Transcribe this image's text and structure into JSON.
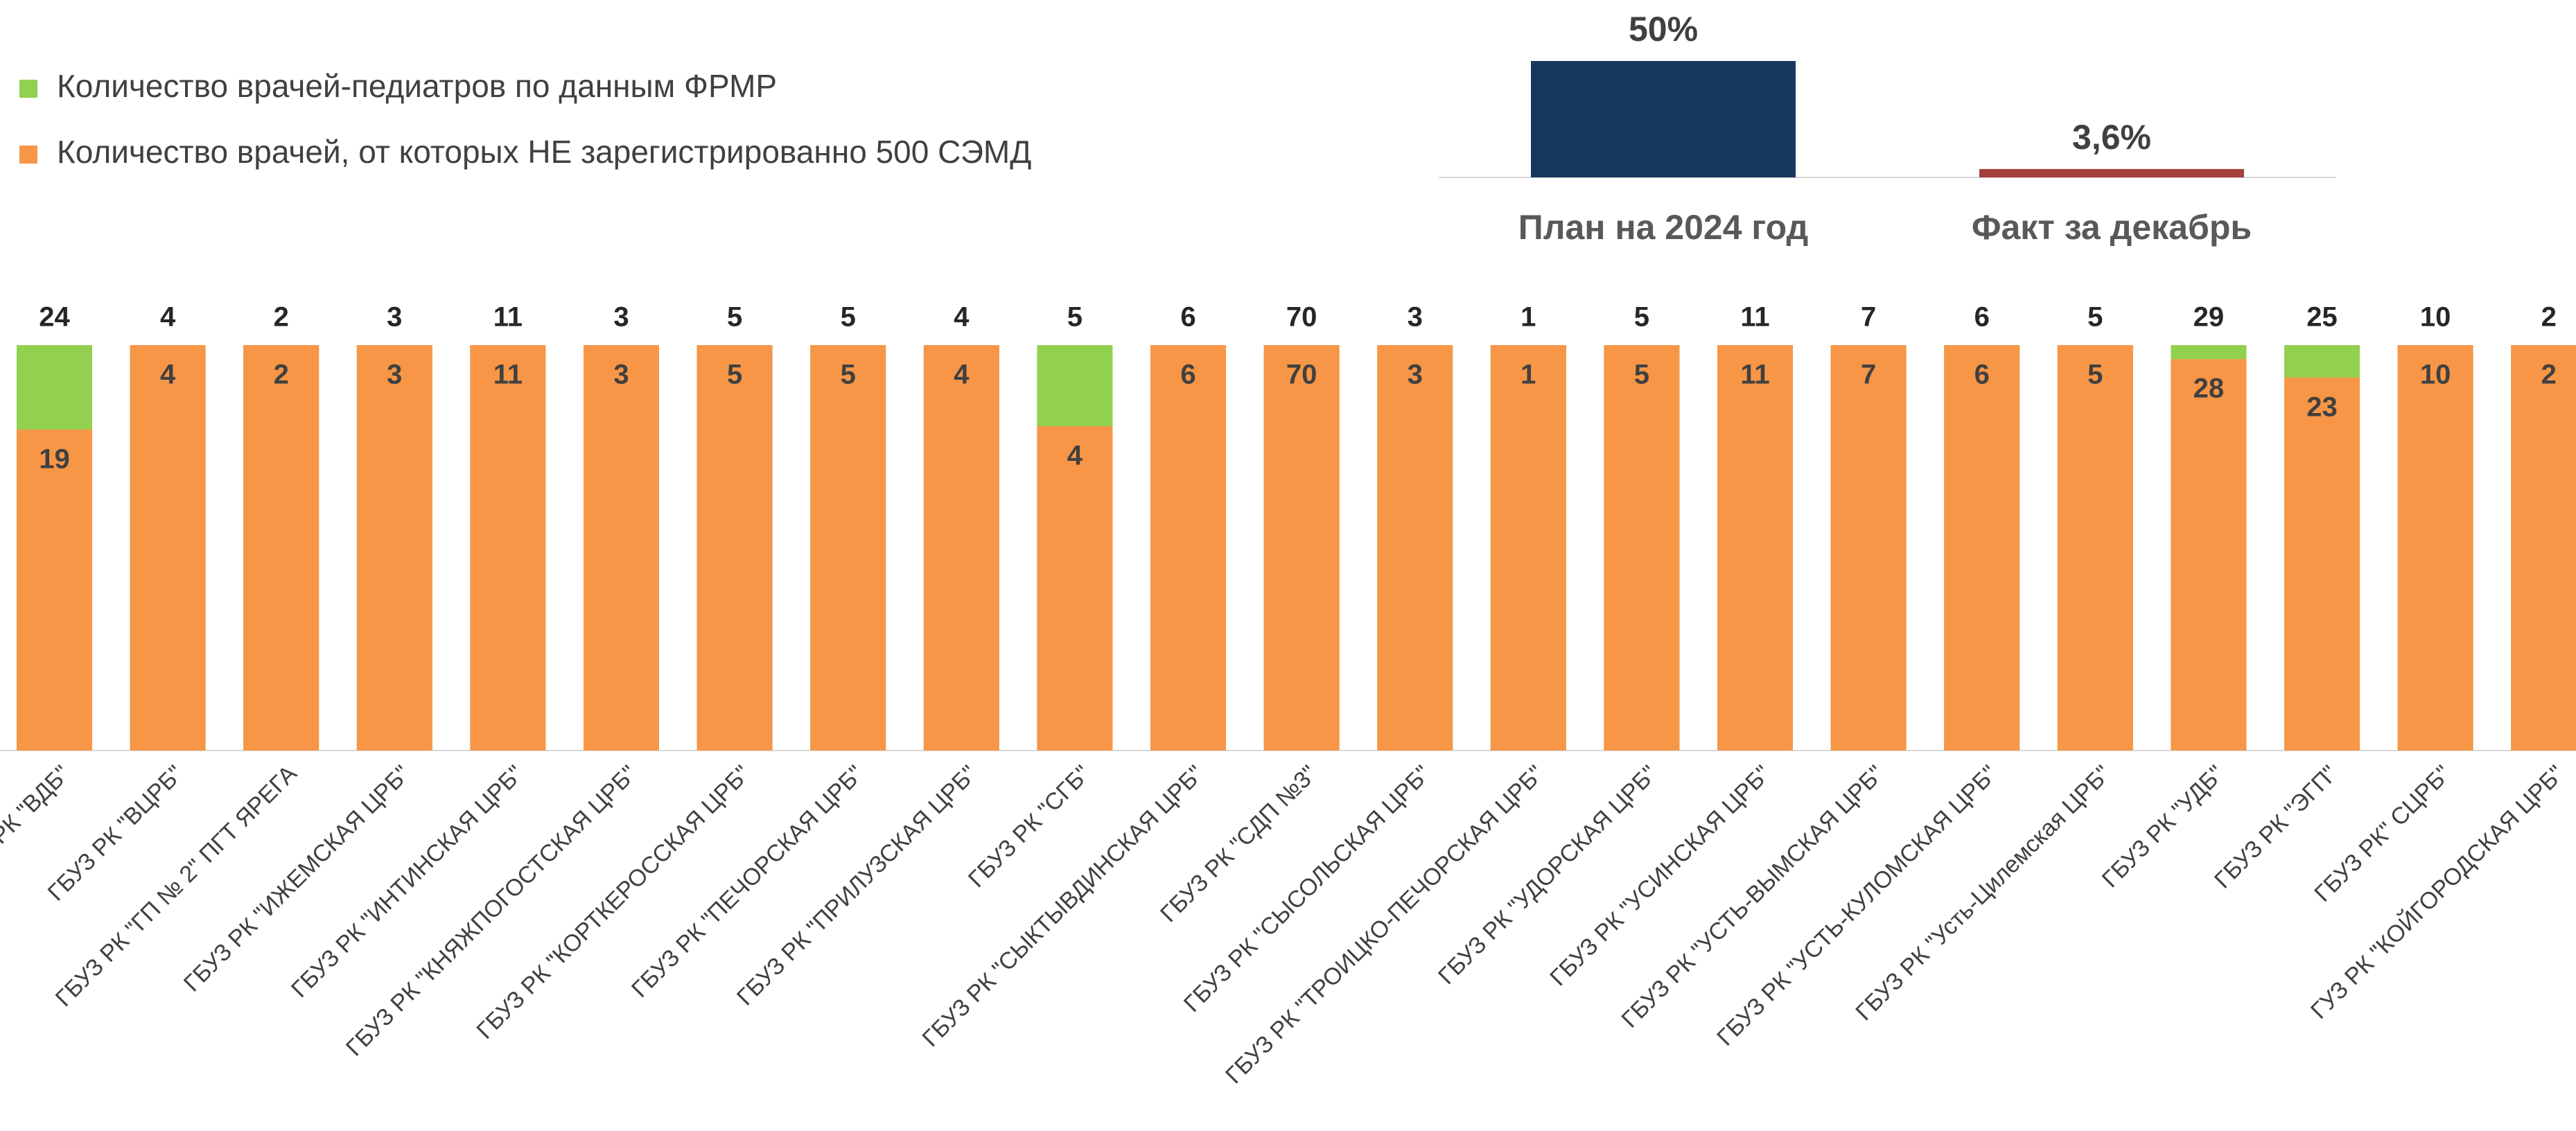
{
  "chart_data": [
    {
      "type": "bar",
      "categories": [
        "ГБУЗ РК \"ВДБ\"",
        "ГБУЗ РК \"ВЦРБ\"",
        "ГБУЗ РК \"ГП № 2\" ПГТ ЯРЕГА",
        "ГБУЗ РК \"ИЖЕМСКАЯ ЦРБ\"",
        "ГБУЗ РК \"ИНТИНСКАЯ ЦРБ\"",
        "ГБУЗ РК \"КНЯЖПОГОСТСКАЯ ЦРБ\"",
        "ГБУЗ РК \"КОРТКЕРОССКАЯ ЦРБ\"",
        "ГБУЗ РК \"ПЕЧОРСКАЯ ЦРБ\"",
        "ГБУЗ РК \"ПРИЛУЗСКАЯ ЦРБ\"",
        "ГБУЗ РК \"СГБ\"",
        "ГБУЗ РК \"СЫКТЫВДИНСКАЯ ЦРБ\"",
        "ГБУЗ РК \"СДП №3\"",
        "ГБУЗ РК \"СЫСОЛЬСКАЯ ЦРБ\"",
        "ГБУЗ РК \"ТРОИЦКО-ПЕЧОРСКАЯ ЦРБ\"",
        "ГБУЗ РК \"УДОРСКАЯ ЦРБ\"",
        "ГБУЗ РК \"УСИНСКАЯ ЦРБ\"",
        "ГБУЗ РК \"УСТЬ-ВЫМСКАЯ ЦРБ\"",
        "ГБУЗ РК \"УСТЬ-КУЛОМСКАЯ ЦРБ\"",
        "ГБУЗ РК \"Усть-Цилемская ЦРБ\"",
        "ГБУЗ РК \"УДБ\"",
        "ГБУЗ РК \"ЭГП\"",
        "ГБУЗ РК\" СЦРБ\"",
        "ГУЗ РК \"КОЙГОРОДСКАЯ ЦРБ\""
      ],
      "series": [
        {
          "name": "Количество врачей-педиатров по данным ФРМР",
          "color": "#92d050",
          "values": [
            24,
            4,
            2,
            3,
            11,
            3,
            5,
            5,
            4,
            5,
            6,
            70,
            3,
            1,
            5,
            11,
            7,
            6,
            5,
            29,
            25,
            10,
            2
          ]
        },
        {
          "name": "Количество врачей, от которых НЕ зарегистрированно 500 СЭМД",
          "color": "#f79646",
          "values": [
            19,
            4,
            2,
            3,
            11,
            3,
            5,
            5,
            4,
            4,
            6,
            70,
            3,
            1,
            5,
            11,
            7,
            6,
            5,
            28,
            23,
            10,
            2
          ]
        }
      ]
    },
    {
      "type": "bar",
      "categories": [
        "План на 2024 год",
        "Факт за декабрь"
      ],
      "values": [
        50,
        3.6
      ],
      "value_labels": [
        "50%",
        "3,6%"
      ],
      "colors": [
        "#17375e",
        "#a5403d"
      ],
      "ylim": [
        0,
        50
      ]
    }
  ]
}
